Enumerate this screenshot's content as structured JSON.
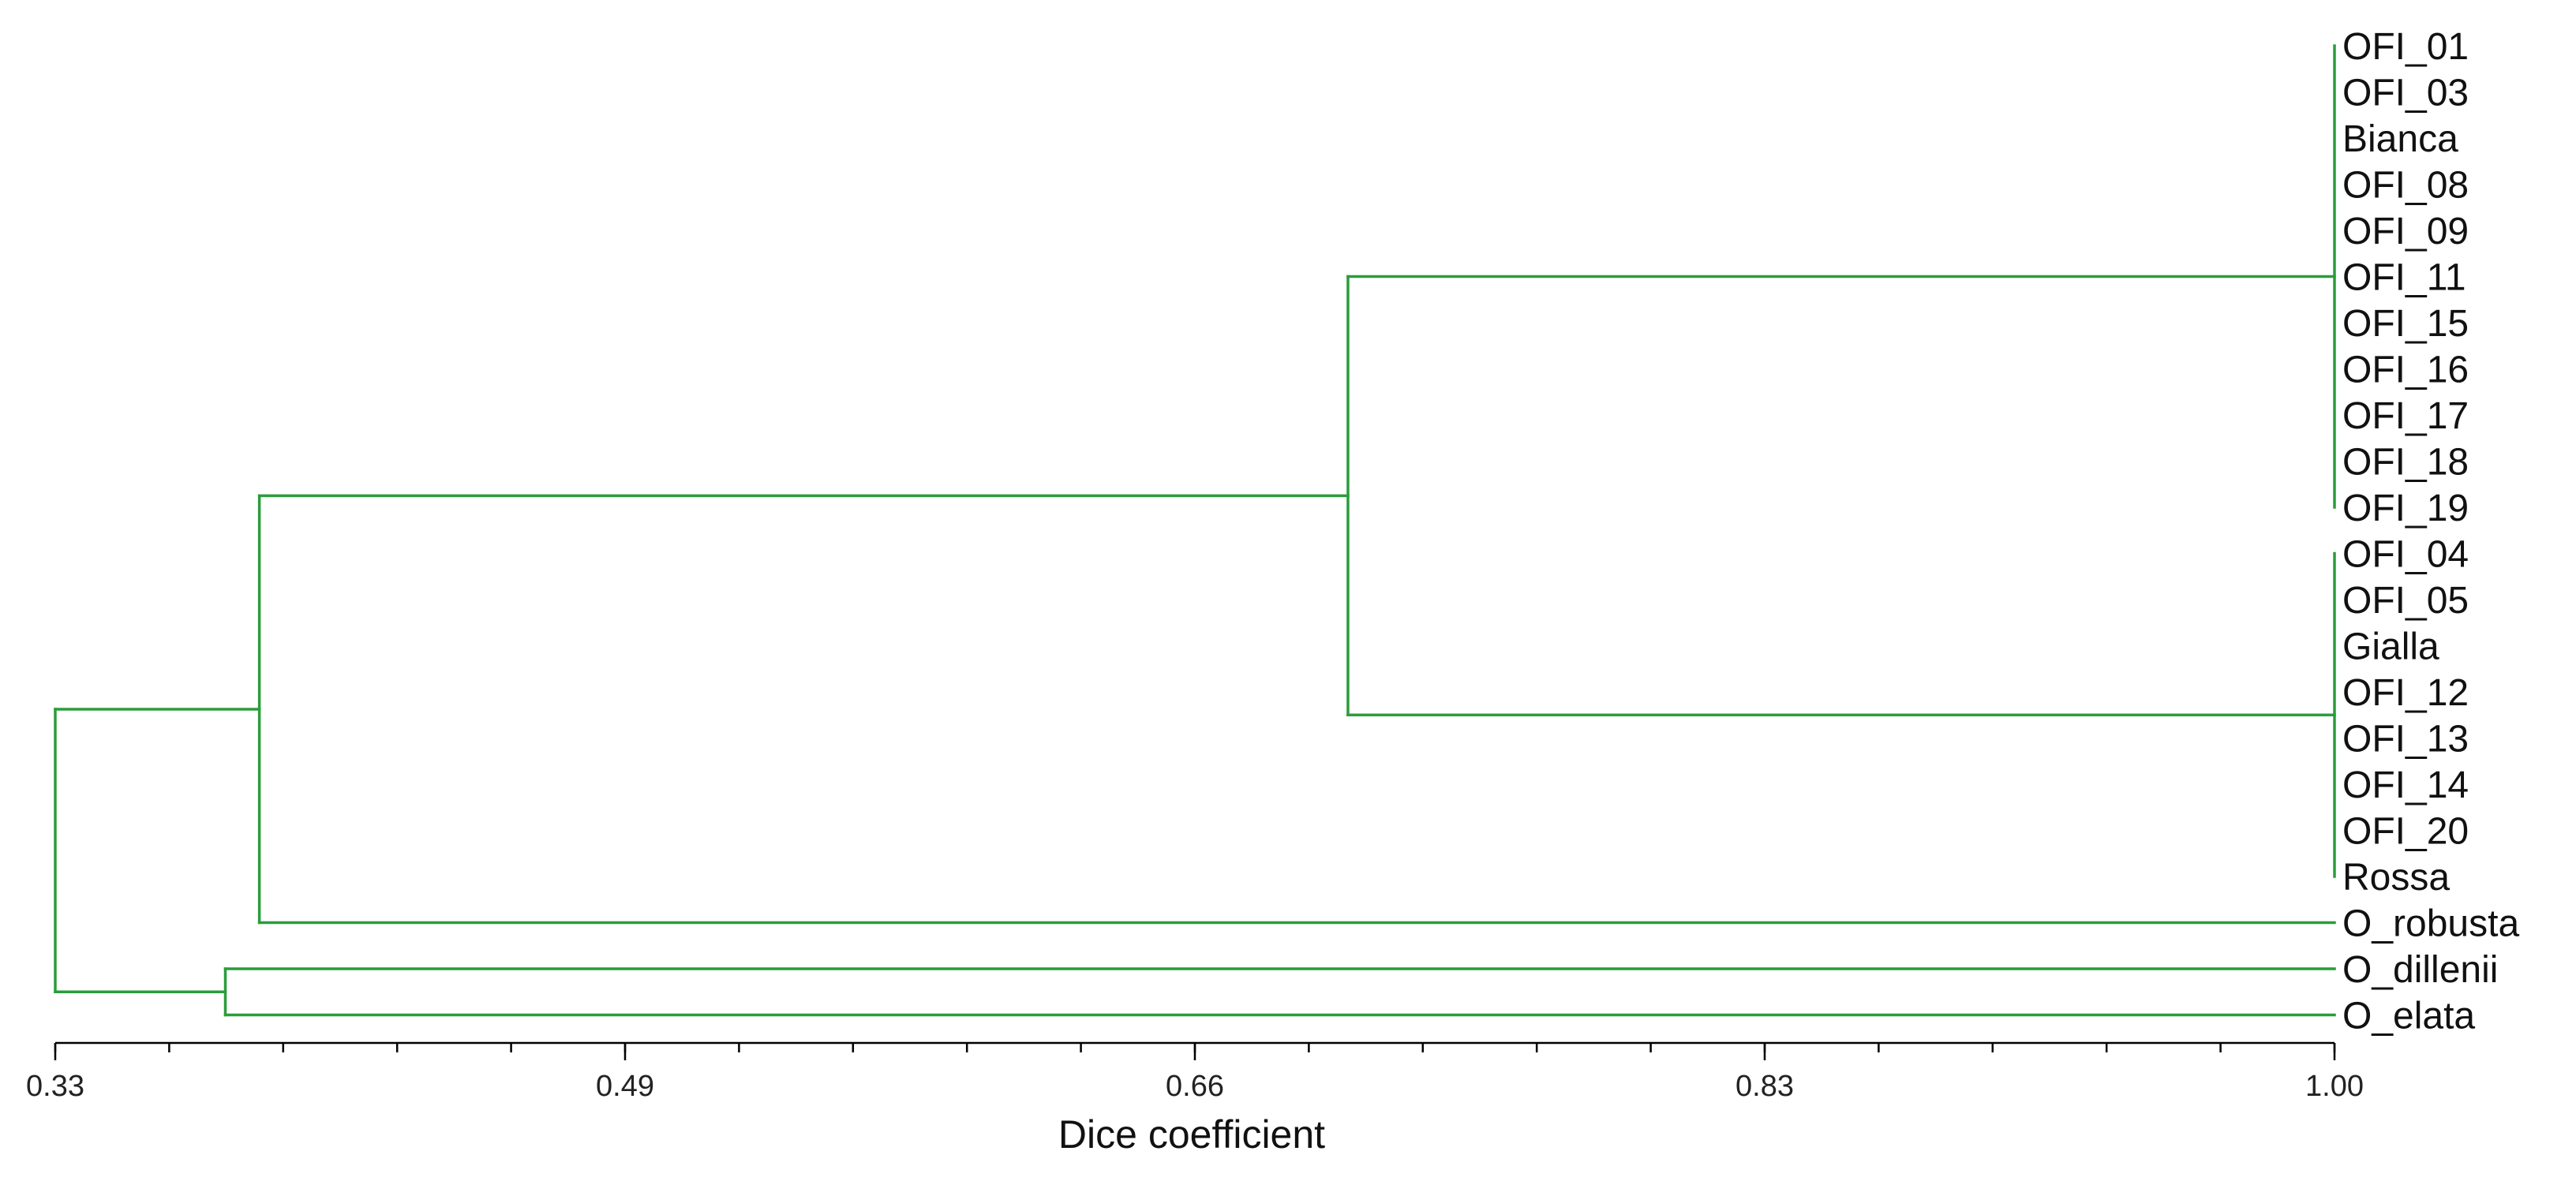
{
  "chart_data": {
    "type": "dendrogram",
    "xlabel": "Dice coefficient",
    "xlim": [
      0.33,
      1.0
    ],
    "ticks": [
      "0.33",
      "0.49",
      "0.66",
      "0.83",
      "1.00"
    ],
    "minor_tick_count": 20,
    "line_color": "#2a9d3a",
    "leaves": [
      "OFI_01",
      "OFI_03",
      "Bianca",
      "OFI_08",
      "OFI_09",
      "OFI_11",
      "OFI_15",
      "OFI_16",
      "OFI_17",
      "OFI_18",
      "OFI_19",
      "OFI_04",
      "OFI_05",
      "Gialla",
      "OFI_12",
      "OFI_13",
      "OFI_14",
      "OFI_20",
      "Rossa",
      "O_robusta",
      "O_dillenii",
      "O_elata"
    ],
    "clusters": [
      {
        "id": "c1",
        "similarity": 1.0,
        "members": [
          "OFI_01",
          "OFI_03",
          "Bianca",
          "OFI_08",
          "OFI_09",
          "OFI_11",
          "OFI_15",
          "OFI_16",
          "OFI_17",
          "OFI_18",
          "OFI_19"
        ]
      },
      {
        "id": "c2",
        "similarity": 1.0,
        "members": [
          "OFI_04",
          "OFI_05",
          "Gialla",
          "OFI_12",
          "OFI_13",
          "OFI_14",
          "OFI_20",
          "Rossa"
        ]
      },
      {
        "id": "c3",
        "similarity": 0.71,
        "members": [
          "c1",
          "c2"
        ]
      },
      {
        "id": "c4",
        "similarity": 0.39,
        "members": [
          "c3",
          "O_robusta"
        ]
      },
      {
        "id": "c5",
        "similarity": 0.38,
        "members": [
          "O_dillenii",
          "O_elata"
        ]
      },
      {
        "id": "c6",
        "similarity": 0.33,
        "members": [
          "c4",
          "c5"
        ]
      }
    ]
  }
}
